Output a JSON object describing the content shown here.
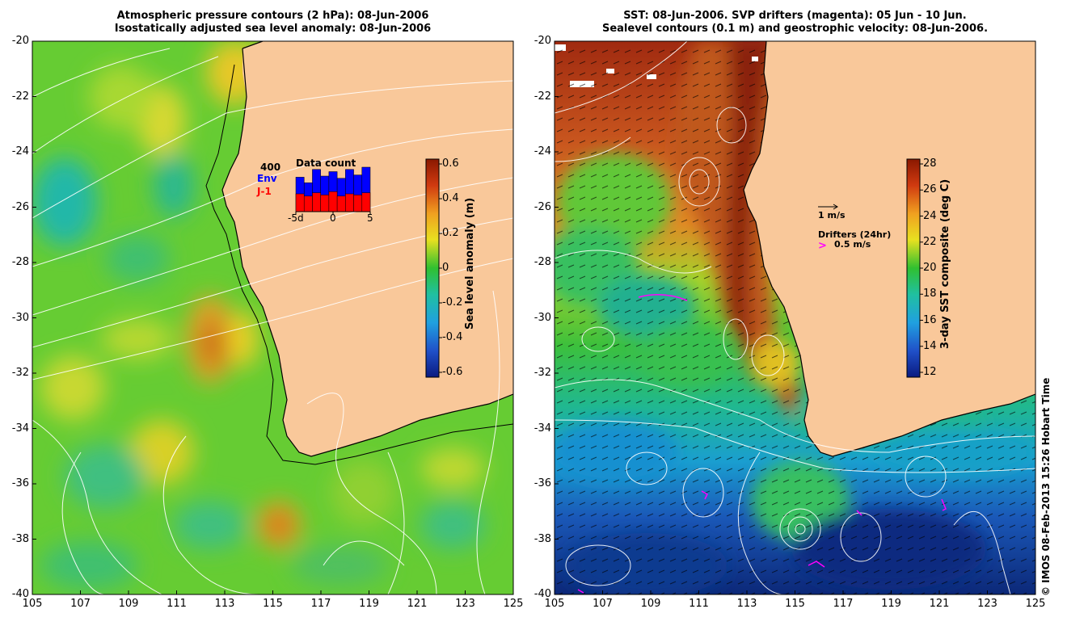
{
  "left_map": {
    "title_line1": "Atmospheric pressure contours (2 hPa): 08-Jun-2006",
    "title_line2": "Isostatically adjusted sea level anomaly: 08-Jun-2006",
    "y_ticks": [
      "-20",
      "-22",
      "-24",
      "-26",
      "-28",
      "-30",
      "-32",
      "-34",
      "-36",
      "-38",
      "-40"
    ],
    "x_ticks": [
      "105",
      "107",
      "109",
      "111",
      "113",
      "115",
      "117",
      "119",
      "121",
      "123",
      "125"
    ],
    "colorbar": {
      "label": "Sea level anomaly (m)",
      "ticks": [
        "0.6",
        "0.4",
        "0.2",
        "0",
        "-0.2",
        "-0.4",
        "-0.6"
      ],
      "range": [
        -0.6,
        0.6
      ]
    },
    "inset": {
      "title": "Data count",
      "max_label": "400",
      "series1_label": "Env",
      "series2_label": "J-1",
      "x_labels": [
        "-5d",
        "0",
        "5"
      ],
      "env_counts": [
        310,
        260,
        380,
        320,
        360,
        300,
        380,
        330,
        400
      ],
      "j1_counts": [
        160,
        140,
        170,
        150,
        180,
        140,
        160,
        150,
        170
      ]
    }
  },
  "right_map": {
    "title_line1": "SST: 08-Jun-2006. SVP drifters (magenta): 05 Jun - 10 Jun.",
    "title_line2": "Sealevel contours (0.1 m) and geostrophic velocity: 08-Jun-2006.",
    "y_ticks": [
      "-20",
      "-22",
      "-24",
      "-26",
      "-28",
      "-30",
      "-32",
      "-34",
      "-36",
      "-38",
      "-40"
    ],
    "x_ticks": [
      "105",
      "107",
      "109",
      "111",
      "113",
      "115",
      "117",
      "119",
      "121",
      "123",
      "125"
    ],
    "colorbar": {
      "label": "3-day SST composite (deg C)",
      "ticks": [
        "28",
        "26",
        "24",
        "22",
        "20",
        "18",
        "16",
        "14",
        "12"
      ],
      "range": [
        11,
        28
      ]
    },
    "velocity_scale_label": "1 m/s",
    "drifters_label": "Drifters (24hr)",
    "drifters_scale_label": "0.5 m/s"
  },
  "credit": "© IMOS 08-Feb-2013 15:26 Hobart Time",
  "colors": {
    "land": "#f9c89a",
    "drifter": "#ff00ff",
    "env": "#0000ff",
    "j1": "#ff0000"
  }
}
